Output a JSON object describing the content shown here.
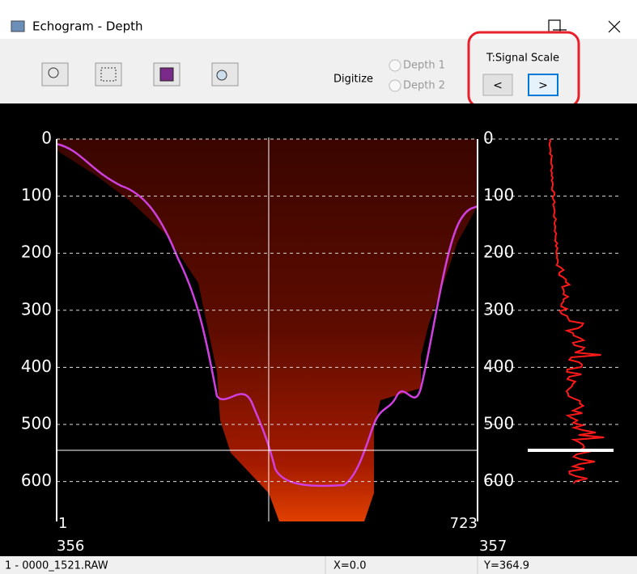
{
  "window": {
    "title": "Echogram - Depth"
  },
  "toolbar": {
    "digitize_label": "Digitize",
    "digitize_options": [
      "Depth 1",
      "Depth 2"
    ],
    "signal_scale_label": "T:Signal Scale",
    "signal_scale_buttons": [
      "<",
      ">"
    ]
  },
  "echogram": {
    "ylim": [
      0,
      670
    ],
    "yticks": [
      0,
      100,
      200,
      300,
      400,
      500,
      600
    ],
    "ping_start": "1",
    "ping_end": "723",
    "file_start": "356",
    "file_end": "357"
  },
  "status_bar": {
    "file": "1 - 0000_1521.RAW",
    "x": "X=0.0",
    "y": "Y=364.9"
  }
}
